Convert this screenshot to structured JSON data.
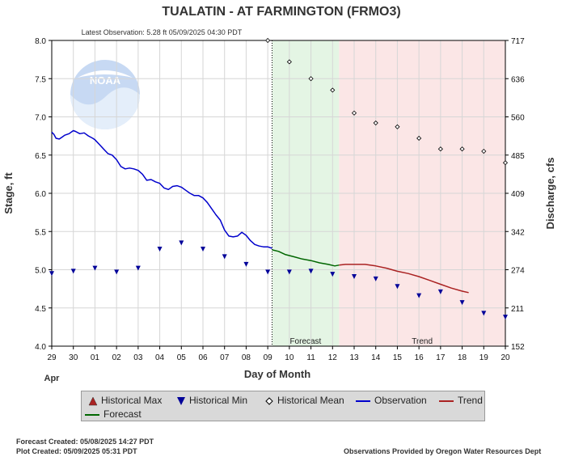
{
  "chart_data": {
    "type": "line",
    "title": "TUALATIN - AT FARMINGTON  (FRMO3)",
    "subtitle": "Latest Observation: 5.28 ft 05/09/2025 04:30 PDT",
    "xlabel": "Day of Month",
    "x_month_label": "Apr",
    "ylabel_left": "Stage, ft",
    "ylabel_right": "Discharge, cfs",
    "x_tick_labels": [
      "29",
      "30",
      "01",
      "02",
      "03",
      "04",
      "05",
      "06",
      "07",
      "08",
      "09",
      "10",
      "11",
      "12",
      "13",
      "14",
      "15",
      "16",
      "17",
      "18",
      "19",
      "20"
    ],
    "y_left_ticks": [
      "4.0",
      "4.5",
      "5.0",
      "5.5",
      "6.0",
      "6.5",
      "7.0",
      "7.5",
      "8.0"
    ],
    "y_right_ticks": [
      "152",
      "211",
      "274",
      "342",
      "409",
      "485",
      "560",
      "636",
      "717"
    ],
    "ylim": [
      4.0,
      8.0
    ],
    "xlim_days": [
      0,
      21
    ],
    "regions": [
      {
        "label": "Forecast",
        "from_day": 10.2,
        "to_day": 13.3,
        "color": "#e4f5e4"
      },
      {
        "label": "Trend",
        "from_day": 13.3,
        "to_day": 21.0,
        "color": "#fbe6e6"
      }
    ],
    "current_time_day": 10.2,
    "series": [
      {
        "name": "Observation",
        "color": "#0000cc",
        "x": [
          0,
          0.1,
          0.2,
          0.35,
          0.5,
          0.6,
          0.8,
          1.0,
          1.1,
          1.3,
          1.5,
          1.7,
          1.9,
          2.0,
          2.2,
          2.4,
          2.6,
          2.8,
          3.0,
          3.2,
          3.4,
          3.6,
          3.8,
          4.0,
          4.2,
          4.4,
          4.6,
          4.8,
          5.0,
          5.2,
          5.4,
          5.6,
          5.8,
          6.0,
          6.2,
          6.4,
          6.6,
          6.8,
          7.0,
          7.2,
          7.4,
          7.6,
          7.8,
          8.0,
          8.2,
          8.4,
          8.6,
          8.8,
          9.0,
          9.2,
          9.4,
          9.6,
          9.8,
          10.0,
          10.2
        ],
        "values": [
          6.8,
          6.77,
          6.72,
          6.71,
          6.74,
          6.76,
          6.78,
          6.82,
          6.81,
          6.78,
          6.79,
          6.75,
          6.72,
          6.7,
          6.64,
          6.58,
          6.52,
          6.5,
          6.44,
          6.35,
          6.32,
          6.33,
          6.32,
          6.3,
          6.25,
          6.17,
          6.18,
          6.15,
          6.13,
          6.07,
          6.05,
          6.09,
          6.1,
          6.08,
          6.04,
          6.0,
          5.97,
          5.97,
          5.94,
          5.88,
          5.8,
          5.72,
          5.65,
          5.52,
          5.44,
          5.43,
          5.44,
          5.49,
          5.45,
          5.38,
          5.33,
          5.31,
          5.3,
          5.3,
          5.28
        ]
      },
      {
        "name": "Forecast",
        "color": "#006600",
        "x": [
          10.2,
          10.5,
          10.8,
          11.2,
          11.6,
          12.0,
          12.4,
          12.8,
          13.1,
          13.3
        ],
        "values": [
          5.26,
          5.24,
          5.2,
          5.17,
          5.14,
          5.12,
          5.09,
          5.07,
          5.05,
          5.06
        ]
      },
      {
        "name": "Trend",
        "color": "#aa2222",
        "x": [
          13.3,
          13.6,
          14.0,
          14.5,
          15.0,
          15.5,
          16.0,
          16.5,
          17.0,
          17.5,
          18.0,
          18.5,
          19.0,
          19.3
        ],
        "values": [
          5.06,
          5.07,
          5.07,
          5.07,
          5.05,
          5.02,
          4.98,
          4.95,
          4.91,
          4.86,
          4.81,
          4.76,
          4.72,
          4.7
        ]
      },
      {
        "name": "Historical Min",
        "color": "#000099",
        "x": [
          0,
          1,
          2,
          3,
          4,
          5,
          6,
          7,
          8,
          9,
          10,
          11,
          12,
          13,
          14,
          15,
          16,
          17,
          18,
          19,
          20,
          21
        ],
        "values": [
          4.95,
          4.98,
          5.02,
          4.97,
          5.02,
          5.27,
          5.35,
          5.27,
          5.17,
          5.07,
          4.97,
          4.97,
          4.98,
          4.94,
          4.91,
          4.88,
          4.78,
          4.66,
          4.71,
          4.57,
          4.43,
          4.38
        ]
      },
      {
        "name": "Historical Mean",
        "color": "#000000",
        "x": [
          10,
          11,
          12,
          13,
          14,
          15,
          16,
          17,
          18,
          19,
          20,
          21
        ],
        "values": [
          8.0,
          7.72,
          7.5,
          7.35,
          7.05,
          6.92,
          6.87,
          6.72,
          6.58,
          6.58,
          6.55,
          6.4
        ]
      }
    ],
    "legend": {
      "placement": "bottom",
      "items": [
        {
          "label": "Historical Max",
          "color": "#aa2222",
          "kind": "triangle-up"
        },
        {
          "label": "Historical Min",
          "color": "#000099",
          "kind": "triangle-down"
        },
        {
          "label": "Historical Mean",
          "color": "#000000",
          "kind": "diamond"
        },
        {
          "label": "Observation",
          "color": "#0000cc",
          "kind": "line"
        },
        {
          "label": "Trend",
          "color": "#aa2222",
          "kind": "line"
        },
        {
          "label": "Forecast",
          "color": "#006600",
          "kind": "line"
        }
      ]
    },
    "grid": true
  },
  "footer": {
    "forecast_created": "Forecast Created: 05/08/2025 14:27 PDT",
    "plot_created": "Plot Created: 05/09/2025 05:31 PDT",
    "credit": "Observations Provided by Oregon Water Resources Dept"
  },
  "logo_text": "NOAA"
}
